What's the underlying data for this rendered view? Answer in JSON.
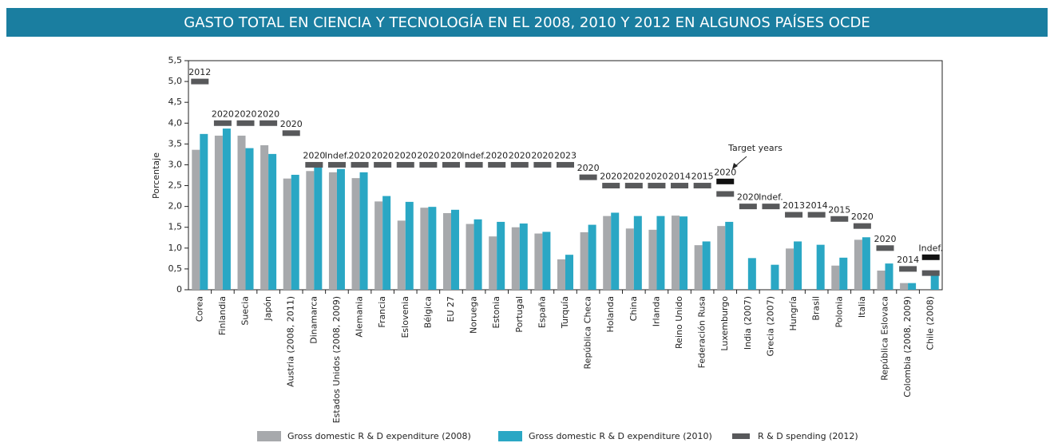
{
  "chart_data": {
    "type": "bar",
    "title": "GASTO TOTAL EN CIENCIA Y TECNOLOGÍA EN EL 2008, 2010 Y 2012 EN ALGUNOS PAÍSES OCDE",
    "y_label": "Porcentaje",
    "annotation": "Target years",
    "categories": [
      "Corea",
      "Finlandia",
      "Suecia",
      "Japón",
      "Austria (2008, 2011)",
      "Dinamarca",
      "Estados Unidos (2008, 2009)",
      "Alemania",
      "Francia",
      "Eslovenia",
      "Bélgica",
      "EU 27",
      "Noruega",
      "Estonia",
      "Portugal",
      "España",
      "Turquía",
      "República Checa",
      "Holanda",
      "China",
      "Irlanda",
      "Reino Unido",
      "Federación Rusa",
      "Luxemburgo",
      "India (2007)",
      "Grecia (2007)",
      "Hungría",
      "Brasil",
      "Polonia",
      "Italia",
      "República Eslovaca",
      "Colombia (2008, 2009)",
      "Chile (2008)"
    ],
    "series": [
      {
        "name": "Gross domestic R & D expenditure (2008)",
        "color": "#a7a9ac",
        "values": [
          3.36,
          3.7,
          3.7,
          3.47,
          2.67,
          2.85,
          2.82,
          2.68,
          2.12,
          1.66,
          1.97,
          1.84,
          1.58,
          1.28,
          1.5,
          1.35,
          0.73,
          1.38,
          1.77,
          1.47,
          1.44,
          1.78,
          1.07,
          1.53,
          null,
          null,
          0.99,
          null,
          0.58,
          1.2,
          0.46,
          0.16,
          null
        ]
      },
      {
        "name": "Gross domestic R & D expenditure (2010)",
        "color": "#2aa7c4",
        "values": [
          3.74,
          3.87,
          3.4,
          3.26,
          2.76,
          3.06,
          2.9,
          2.82,
          2.25,
          2.11,
          1.99,
          1.92,
          1.69,
          1.63,
          1.59,
          1.39,
          0.84,
          1.56,
          1.85,
          1.77,
          1.77,
          1.76,
          1.16,
          1.63,
          0.76,
          0.6,
          1.16,
          1.08,
          0.77,
          1.26,
          0.63,
          0.16,
          0.37
        ]
      },
      {
        "name": "R & D spending (2012)",
        "color": "#58595b",
        "marker": true,
        "values": [
          5.0,
          4.0,
          4.0,
          4.0,
          3.76,
          3.0,
          3.0,
          3.0,
          3.0,
          3.0,
          3.0,
          3.0,
          3.0,
          3.0,
          3.0,
          3.0,
          3.0,
          2.7,
          2.5,
          2.5,
          2.5,
          2.5,
          2.5,
          2.3,
          2.0,
          2.0,
          1.8,
          1.8,
          1.7,
          1.53,
          1.0,
          0.5,
          0.4
        ],
        "value_labels": [
          "2012",
          "2020",
          "2020",
          "2020",
          "2020",
          "2020",
          "Indef.",
          "2020",
          "2020",
          "2020",
          "2020",
          "2020",
          "Indef.",
          "2020",
          "2020",
          "2020",
          "2023",
          "2020",
          "2020",
          "2020",
          "2020",
          "2014",
          "2015",
          null,
          "2020",
          "Indef.",
          "2013",
          "2014",
          "2015",
          "2020",
          "2020",
          "2014",
          null
        ]
      }
    ],
    "extra_markers": {
      "color": "#111111",
      "values": [
        null,
        null,
        null,
        null,
        null,
        null,
        null,
        null,
        null,
        null,
        null,
        null,
        null,
        null,
        null,
        null,
        null,
        null,
        null,
        null,
        null,
        null,
        null,
        2.6,
        null,
        null,
        null,
        null,
        null,
        null,
        null,
        null,
        0.78
      ],
      "value_labels": [
        null,
        null,
        null,
        null,
        null,
        null,
        null,
        null,
        null,
        null,
        null,
        null,
        null,
        null,
        null,
        null,
        null,
        null,
        null,
        null,
        null,
        null,
        null,
        "2020",
        null,
        null,
        null,
        null,
        null,
        null,
        null,
        null,
        "Indef."
      ]
    },
    "ylim": [
      0,
      5.5
    ],
    "yticks": [
      0,
      {
        "value": 0.5,
        "label": "0,5"
      },
      {
        "value": 1.0,
        "label": "1,0"
      },
      {
        "value": 1.5,
        "label": "1,5"
      },
      {
        "value": 2.0,
        "label": "2,0"
      },
      {
        "value": 2.5,
        "label": "2,5"
      },
      {
        "value": 3.0,
        "label": "3,0"
      },
      {
        "value": 3.5,
        "label": "3,5"
      },
      {
        "value": 4.0,
        "label": "4,0"
      },
      {
        "value": 4.5,
        "label": "4,5"
      },
      {
        "value": 5.0,
        "label": "5,0"
      },
      {
        "value": 5.5,
        "label": "5,5"
      }
    ],
    "banner_color": "#1a7ea0"
  }
}
